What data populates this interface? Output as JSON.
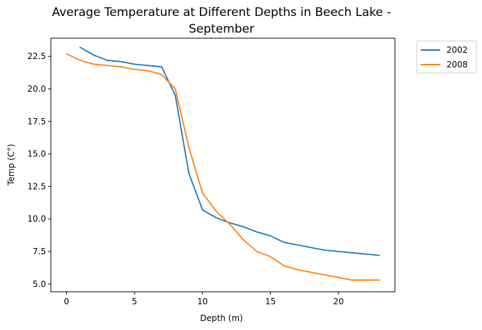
{
  "chart_data": {
    "type": "line",
    "title_line1": "Average Temperature at Different Depths in Beech Lake -",
    "title_line2": "September",
    "xlabel": "Depth (m)",
    "ylabel": "Temp (C°)",
    "xlim": [
      -1.15,
      24.15
    ],
    "ylim": [
      4.4,
      23.9
    ],
    "xticks": [
      0,
      5,
      10,
      15,
      20
    ],
    "xtick_labels": [
      "0",
      "5",
      "10",
      "15",
      "20"
    ],
    "yticks": [
      5.0,
      7.5,
      10.0,
      12.5,
      15.0,
      17.5,
      20.0,
      22.5
    ],
    "ytick_labels": [
      "5.0",
      "7.5",
      "10.0",
      "12.5",
      "15.0",
      "17.5",
      "20.0",
      "22.5"
    ],
    "grid": false,
    "legend_position": "outside top-right",
    "series": [
      {
        "name": "2002",
        "color": "#1f77b4",
        "x": [
          1,
          2,
          3,
          4,
          5,
          6,
          7,
          8,
          9,
          10,
          11,
          12,
          13,
          14,
          15,
          16,
          17,
          18,
          19,
          20,
          21,
          22,
          23
        ],
        "y": [
          23.2,
          22.6,
          22.2,
          22.1,
          21.9,
          21.8,
          21.7,
          19.5,
          13.5,
          10.7,
          10.1,
          9.7,
          9.4,
          9.0,
          8.7,
          8.2,
          8.0,
          7.8,
          7.6,
          7.5,
          7.4,
          7.3,
          7.2
        ]
      },
      {
        "name": "2008",
        "color": "#ff7f0e",
        "x": [
          0,
          1,
          2,
          3,
          4,
          5,
          6,
          7,
          8,
          9,
          10,
          11,
          12,
          13,
          14,
          15,
          16,
          17,
          18,
          19,
          20,
          21,
          22,
          23
        ],
        "y": [
          22.7,
          22.2,
          21.9,
          21.8,
          21.7,
          21.5,
          21.4,
          21.1,
          20.0,
          15.5,
          12.0,
          10.6,
          9.6,
          8.4,
          7.5,
          7.1,
          6.4,
          6.1,
          5.9,
          5.7,
          5.5,
          5.3,
          5.3,
          5.3
        ]
      }
    ]
  }
}
